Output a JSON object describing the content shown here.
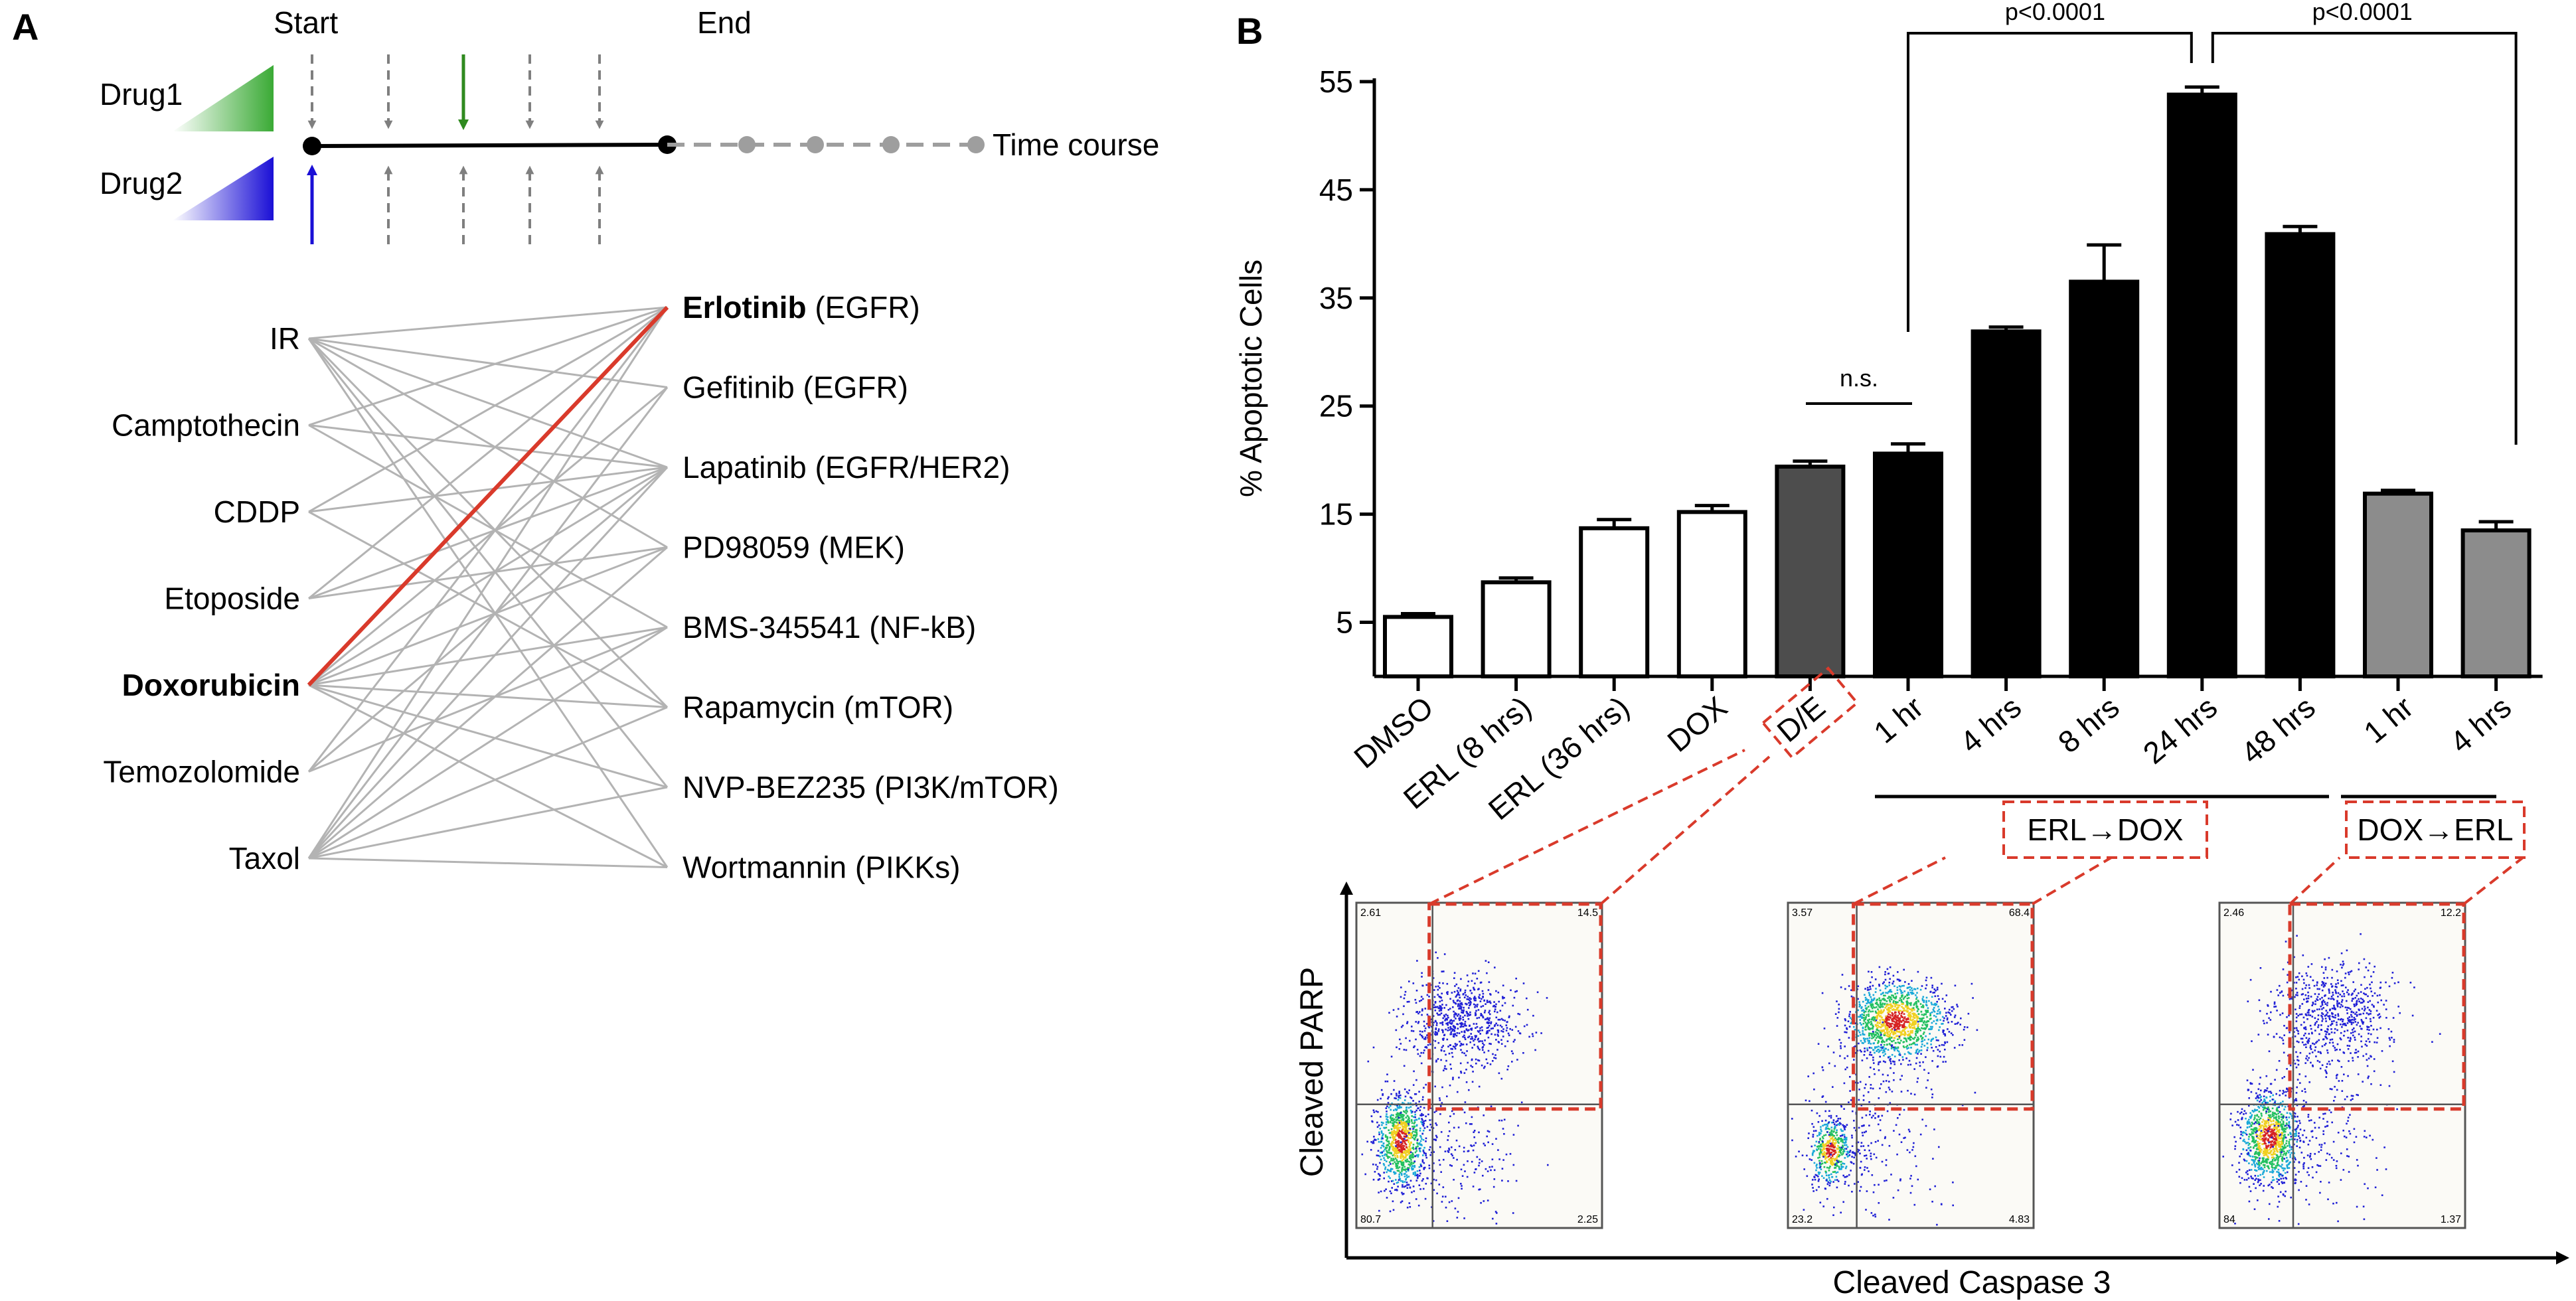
{
  "panel_a": {
    "letter": "A",
    "start_label": "Start",
    "end_label": "End",
    "drug1_label": "Drug1",
    "drug2_label": "Drug2",
    "time_course_label": "Time course",
    "drug1_color": "#3aaa35",
    "drug2_color": "#1a0fd6",
    "highlight_color": "#d93a2b",
    "left_drugs": [
      "IR",
      "Camptothecin",
      "CDDP",
      "Etoposide",
      "Doxorubicin",
      "Temozolomide",
      "Taxol"
    ],
    "right_drugs": [
      {
        "name": "Erlotinib",
        "target": " (EGFR)",
        "bold": true
      },
      {
        "name": "Gefitinib",
        "target": " (EGFR)",
        "bold": false
      },
      {
        "name": "Lapatinib",
        "target": " (EGFR/HER2)",
        "bold": false
      },
      {
        "name": "PD98059",
        "target": " (MEK)",
        "bold": false
      },
      {
        "name": "BMS-345541",
        "target": " (NF-kB)",
        "bold": false
      },
      {
        "name": "Rapamycin",
        "target": " (mTOR)",
        "bold": false
      },
      {
        "name": "NVP-BEZ235",
        "target": " (PI3K/mTOR)",
        "bold": false
      },
      {
        "name": "Wortmannin",
        "target": " (PIKKs)",
        "bold": false
      }
    ],
    "bold_left": "Doxorubicin",
    "highlight_pair": [
      "Doxorubicin",
      "Erlotinib"
    ]
  },
  "panel_b": {
    "letter": "B",
    "group_labels": [
      "ERL→DOX",
      "DOX→ERL"
    ],
    "sig_labels": [
      "n.s.",
      "p<0.0001",
      "p<0.0001"
    ]
  },
  "chart_data": [
    {
      "type": "bar",
      "ylabel": "% Apoptotic Cells",
      "xlabel": "",
      "ylim": [
        0,
        55
      ],
      "yticks": [
        5,
        15,
        25,
        35,
        45,
        55
      ],
      "categories": [
        "DMSO",
        "ERL (8 hrs)",
        "ERL (36 hrs)",
        "DOX",
        "D/E",
        "1 hr",
        "4 hrs",
        "8 hrs",
        "24 hrs",
        "48 hrs",
        "1 hr",
        "4 hrs"
      ],
      "values": [
        5.5,
        8.7,
        13.7,
        15.2,
        19.4,
        20.6,
        31.9,
        36.5,
        53.8,
        40.9,
        16.9,
        13.5
      ],
      "errors": [
        0.3,
        0.4,
        0.8,
        0.6,
        0.5,
        0.9,
        0.4,
        3.4,
        0.7,
        0.7,
        0.3,
        0.8
      ],
      "bar_colors": [
        "#ffffff",
        "#ffffff",
        "#ffffff",
        "#ffffff",
        "#4d4d4d",
        "#000000",
        "#000000",
        "#000000",
        "#000000",
        "#000000",
        "#8c8c8c",
        "#8c8c8c"
      ],
      "grid": false,
      "legend": "none"
    },
    {
      "type": "scatter",
      "xlabel": "Cleaved Caspase 3",
      "ylabel": "Cleaved PARP",
      "plots": [
        {
          "name": "D/E",
          "quadrants": {
            "top_left": "2.61",
            "top_right": "14.5",
            "bottom_left": "80.7",
            "bottom_right": "2.25"
          }
        },
        {
          "name": "ERL→DOX",
          "quadrants": {
            "top_left": "3.57",
            "top_right": "68.4",
            "bottom_left": "23.2",
            "bottom_right": "4.83"
          }
        },
        {
          "name": "DOX→ERL",
          "quadrants": {
            "top_left": "2.46",
            "top_right": "12.2",
            "bottom_left": "84",
            "bottom_right": "1.37"
          }
        }
      ]
    }
  ]
}
